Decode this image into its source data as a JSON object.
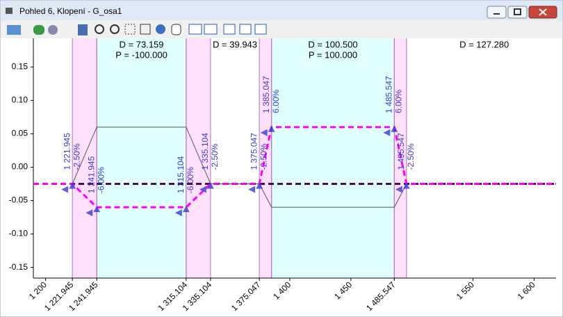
{
  "window": {
    "title": "Pohled 6, Klopení - G_osa1"
  },
  "chart_data": {
    "type": "line",
    "xlim": [
      1190,
      1618
    ],
    "ylim": [
      -0.166,
      0.193
    ],
    "xticks": [
      {
        "value": 1200,
        "label": "1 200"
      },
      {
        "value": 1221.945,
        "label": "1 221.945"
      },
      {
        "value": 1241.945,
        "label": "1 241.945"
      },
      {
        "value": 1315.104,
        "label": "1 315.104"
      },
      {
        "value": 1335.104,
        "label": "1 335.104"
      },
      {
        "value": 1375.047,
        "label": "1 375.047"
      },
      {
        "value": 1400,
        "label": "1 400"
      },
      {
        "value": 1450,
        "label": "1 450"
      },
      {
        "value": 1485.547,
        "label": "1 485.547"
      },
      {
        "value": 1550,
        "label": "1 550"
      },
      {
        "value": 1600,
        "label": "1 600"
      }
    ],
    "yticks": [
      0.15,
      {
        "value": 0.1,
        "label": "0.10"
      },
      0.05,
      {
        "value": 0,
        "label": "0.00"
      },
      -0.05,
      {
        "value": -0.1,
        "label": "-0.10"
      },
      -0.15
    ],
    "bands": [
      {
        "from": 1221.945,
        "to": 1241.945,
        "color": "#ffe0fa"
      },
      {
        "from": 1241.945,
        "to": 1315.104,
        "color": "#e0ffff"
      },
      {
        "from": 1315.104,
        "to": 1335.104,
        "color": "#ffe0fa"
      },
      {
        "from": 1375.047,
        "to": 1385.047,
        "color": "#ffe0fa"
      },
      {
        "from": 1385.047,
        "to": 1485.547,
        "color": "#e0ffff"
      },
      {
        "from": 1485.547,
        "to": 1495.547,
        "color": "#ffe0fa"
      }
    ],
    "annotations": [
      {
        "from": 1241.945,
        "to": 1315.104,
        "lines": [
          "D = 73.159",
          "P = -100.000"
        ]
      },
      {
        "from": 1335.104,
        "to": 1375.047,
        "lines": [
          "D = 39.943"
        ]
      },
      {
        "from": 1385.047,
        "to": 1485.547,
        "lines": [
          "D = 100.500",
          "P = 100.000"
        ]
      },
      {
        "from": 1495.547,
        "to": 1622.827,
        "lines": [
          "D = 127.280"
        ]
      }
    ],
    "series": [
      {
        "color": "#4b0a5a",
        "dash": true,
        "width": 3,
        "x": [
          1190,
          1618
        ],
        "values": [
          -0.025,
          -0.025
        ]
      },
      {
        "color": "#555555",
        "dash": false,
        "width": 1,
        "x": [
          1221.945,
          1241.945,
          1315.104,
          1335.104,
          1375.047,
          1385.047,
          1485.547,
          1495.547
        ],
        "values": [
          -0.025,
          0.06,
          0.06,
          -0.025,
          -0.025,
          -0.06,
          -0.06,
          -0.025
        ]
      },
      {
        "color": "#ff00ff",
        "dash": true,
        "width": 3,
        "x": [
          1190,
          1221.945,
          1241.945,
          1315.104,
          1335.104,
          1375.047,
          1385.047,
          1485.547,
          1495.547,
          1618
        ],
        "values": [
          -0.025,
          -0.025,
          -0.06,
          -0.06,
          -0.025,
          -0.025,
          0.06,
          0.06,
          -0.025,
          -0.025
        ]
      }
    ],
    "points": [
      {
        "x": {
          "value": 1221.945,
          "label": "1 221.945"
        },
        "y": {
          "value": -0.025,
          "label": "-2.50%"
        }
      },
      {
        "x": {
          "value": 1241.945,
          "label": "1 241.945"
        },
        "y": {
          "value": -0.06,
          "label": "-6.00%"
        }
      },
      {
        "x": {
          "value": 1315.104,
          "label": "1 315.104"
        },
        "y": {
          "value": -0.06,
          "label": "-6.00%"
        }
      },
      {
        "x": {
          "value": 1335.104,
          "label": "1 335.104"
        },
        "y": {
          "value": -0.025,
          "label": "-2.50%"
        }
      },
      {
        "x": {
          "value": 1375.047,
          "label": "1 375.047"
        },
        "y": {
          "value": -0.025,
          "label": "-2.50%"
        }
      },
      {
        "x": {
          "value": 1385.047,
          "label": "1 385.047"
        },
        "y": {
          "value": 0.06,
          "label": "6.00%"
        }
      },
      {
        "x": {
          "value": 1485.547,
          "label": "1 485.547"
        },
        "y": {
          "value": 0.06,
          "label": "6.00%"
        }
      },
      {
        "x": {
          "value": 1495.547,
          "label": "1 495.547"
        },
        "y": {
          "value": -0.025,
          "label": "-2.50%"
        }
      }
    ],
    "point_color": "#3a3ad0",
    "band_edge_color": "#b070c0"
  }
}
